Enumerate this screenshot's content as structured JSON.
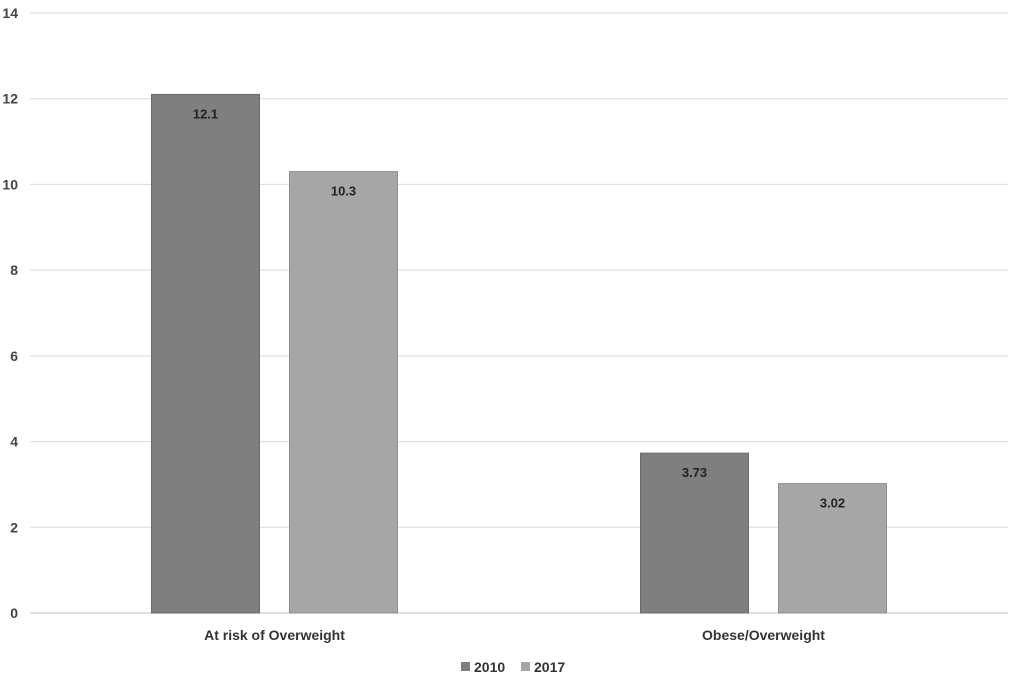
{
  "chart_data": {
    "type": "bar",
    "categories": [
      "At risk of Overweight",
      "Obese/Overweight"
    ],
    "series": [
      {
        "name": "2010",
        "values": [
          12.1,
          3.73
        ],
        "color": "#7f7f7f",
        "stroke": "#6b6b6b"
      },
      {
        "name": "2017",
        "values": [
          10.3,
          3.02
        ],
        "color": "#a6a6a6",
        "stroke": "#8f8f8f"
      }
    ],
    "data_labels": [
      [
        "12.1",
        "3.73"
      ],
      [
        "10.3",
        "3.02"
      ]
    ],
    "ylim": [
      0,
      14
    ],
    "yticks": [
      0,
      2,
      4,
      6,
      8,
      10,
      12,
      14
    ],
    "grid": true,
    "legend_position": "bottom-center"
  }
}
